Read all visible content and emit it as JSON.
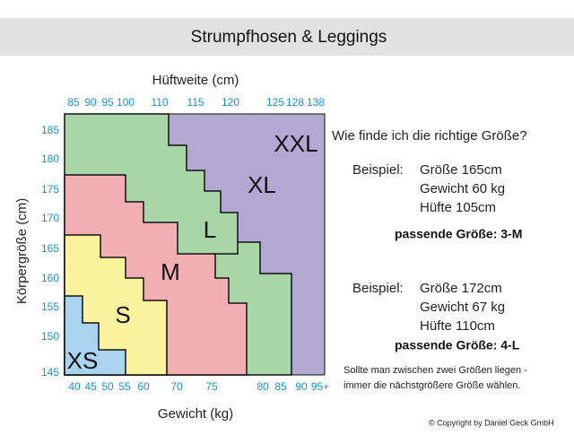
{
  "title": "Strumpfhosen & Leggings",
  "hip_axis": {
    "label": "Hüftweite (cm)",
    "ticks": [
      "85",
      "90",
      "95",
      "100",
      "110",
      "115",
      "120",
      "125",
      "128",
      "138"
    ]
  },
  "height_axis": {
    "label": "Körpergröße (cm)",
    "ticks": [
      "185",
      "180",
      "175",
      "170",
      "165",
      "160",
      "155",
      "150",
      "145"
    ]
  },
  "weight_axis": {
    "label": "Gewicht (kg)",
    "ticks": [
      "40",
      "45",
      "50",
      "55",
      "60",
      "70",
      "75",
      "80",
      "85",
      "90",
      "95+"
    ]
  },
  "sizes": [
    "XXL",
    "XL",
    "L",
    "M",
    "S",
    "XS"
  ],
  "question": "Wie finde ich die richtige Größe?",
  "examples": [
    {
      "label": "Beispiel:",
      "lines": [
        "Größe 165cm",
        "Gewicht 60 kg",
        "Hüfte 105cm"
      ],
      "result": "passende Größe: 3-M"
    },
    {
      "label": "Beispiel:",
      "lines": [
        "Größe 172cm",
        "Gewicht 67 kg",
        "Hüfte 110cm"
      ],
      "result": "passende Größe: 4-L"
    }
  ],
  "note": [
    "Sollte man zwischen zwei Größen liegen -",
    "immer die nächstgrößere Größe wählen."
  ],
  "copyright": "© Copyright by Daniel Geck GmbH"
}
